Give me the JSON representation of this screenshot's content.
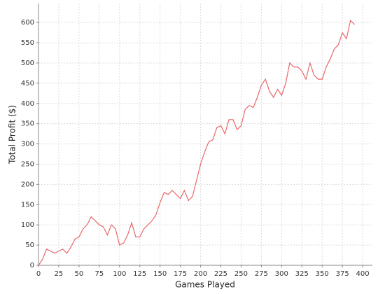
{
  "chart_data": {
    "type": "line",
    "x_label": "Games Played",
    "y_label": "Total Profit ($)",
    "x": [
      0,
      5,
      10,
      15,
      20,
      25,
      30,
      35,
      40,
      45,
      50,
      55,
      60,
      65,
      70,
      75,
      80,
      85,
      90,
      95,
      100,
      105,
      110,
      115,
      120,
      125,
      130,
      135,
      140,
      145,
      150,
      155,
      160,
      165,
      170,
      175,
      180,
      185,
      190,
      195,
      200,
      205,
      210,
      215,
      220,
      225,
      230,
      235,
      240,
      245,
      250,
      255,
      260,
      265,
      270,
      275,
      280,
      285,
      290,
      295,
      300,
      305,
      310,
      315,
      320,
      325,
      330,
      335,
      340,
      345,
      350,
      355,
      360,
      365,
      370,
      375,
      380,
      385,
      390
    ],
    "series": [
      {
        "name": "Total Profit",
        "color": "#e8686a",
        "values": [
          0,
          15,
          40,
          35,
          30,
          35,
          40,
          30,
          45,
          65,
          70,
          90,
          100,
          120,
          110,
          100,
          95,
          75,
          100,
          90,
          50,
          55,
          75,
          105,
          70,
          70,
          90,
          100,
          110,
          125,
          155,
          180,
          175,
          185,
          175,
          165,
          185,
          160,
          170,
          210,
          250,
          280,
          305,
          310,
          340,
          345,
          325,
          360,
          360,
          335,
          345,
          385,
          395,
          390,
          415,
          445,
          460,
          430,
          415,
          435,
          420,
          450,
          500,
          490,
          490,
          480,
          460,
          500,
          470,
          460,
          460,
          490,
          510,
          535,
          545,
          575,
          560,
          605,
          595
        ]
      }
    ],
    "xlim": [
      0,
      412
    ],
    "ylim": [
      0,
      647
    ],
    "xticks": [
      0,
      25,
      50,
      75,
      100,
      125,
      150,
      175,
      200,
      225,
      250,
      275,
      300,
      325,
      350,
      375,
      400
    ],
    "yticks": [
      0,
      50,
      100,
      150,
      200,
      250,
      300,
      350,
      400,
      450,
      500,
      550,
      600
    ],
    "grid": true
  }
}
